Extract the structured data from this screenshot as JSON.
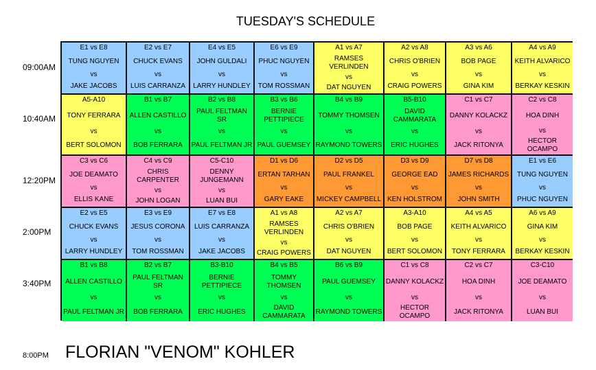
{
  "title": "TUESDAY'S SCHEDULE",
  "colors": {
    "E": "#99ccff",
    "A": "#ffff66",
    "B": "#00ff55",
    "C": "#ff99cc",
    "D": "#ff9933"
  },
  "vs_label": "vs",
  "rows": [
    {
      "time": "09:00AM",
      "matches": [
        {
          "div": "E",
          "label": "E1 vs E8",
          "p1": "TUNG NGUYEN",
          "p2": "JAKE JACOBS"
        },
        {
          "div": "E",
          "label": "E2 vs E7",
          "p1": "CHUCK EVANS",
          "p2": "LUIS CARRANZA"
        },
        {
          "div": "E",
          "label": "E4 vs E5",
          "p1": "JOHN GULDALI",
          "p2": "LARRY HUNDLEY"
        },
        {
          "div": "E",
          "label": "E6 vs E9",
          "p1": "PHUC NGUYEN",
          "p2": "TOM ROSSMAN"
        },
        {
          "div": "A",
          "label": "A1 vs A7",
          "p1": "RAMSES VERLINDEN",
          "p2": "DAT NGUYEN"
        },
        {
          "div": "A",
          "label": "A2 vs A8",
          "p1": "CHRIS O'BRIEN",
          "p2": "CRAIG POWERS"
        },
        {
          "div": "A",
          "label": "A3 vs A6",
          "p1": "BOB PAGE",
          "p2": "GINA KIM"
        },
        {
          "div": "A",
          "label": "A4 vs A9",
          "p1": "KEITH ALVARICO",
          "p2": "BERKAY KESKIN"
        }
      ]
    },
    {
      "time": "10:40AM",
      "matches": [
        {
          "div": "A",
          "label": "A5-A10",
          "p1": "TONY FERRARA",
          "p2": "BERT SOLOMON"
        },
        {
          "div": "B",
          "label": "B1 vs B7",
          "p1": "ALLEN CASTILLO",
          "p2": "BOB FERRARA"
        },
        {
          "div": "B",
          "label": "B2 vs B8",
          "p1": "PAUL FELTMAN SR",
          "p2": "PAUL FELTMAN JR"
        },
        {
          "div": "B",
          "label": "B3 vs B6",
          "p1": "BERNIE PETTIPIECE",
          "p2": "PAUL GUEMSEY"
        },
        {
          "div": "B",
          "label": "B4 vs B9",
          "p1": "TOMMY THOMSEN",
          "p2": "RAYMOND TOWERS"
        },
        {
          "div": "B",
          "label": "B5-B10",
          "p1": "DAVID CAMMARATA",
          "p2": "ERIC HUGHES"
        },
        {
          "div": "C",
          "label": "C1 vs C7",
          "p1": "DANNY KOLACKZ",
          "p2": "JACK RITONYA"
        },
        {
          "div": "C",
          "label": "C2 vs C8",
          "p1": "HOA DINH",
          "p2": "HECTOR OCAMPO"
        }
      ]
    },
    {
      "time": "12:20PM",
      "matches": [
        {
          "div": "C",
          "label": "C3 vs C6",
          "p1": "JOE DEAMATO",
          "p2": "ELLIS KANE"
        },
        {
          "div": "C",
          "label": "C4 vs C9",
          "p1": "CHRIS CARPENTER",
          "p2": "JOHN LOGAN"
        },
        {
          "div": "C",
          "label": "C5-C10",
          "p1": "DENNY JUNGEMANN",
          "p2": "LUAN BUI"
        },
        {
          "div": "D",
          "label": "D1 vs D6",
          "p1": "ERTAN TARHAN",
          "p2": "GARY EAKE"
        },
        {
          "div": "D",
          "label": "D2 vs D5",
          "p1": "PAUL FRANKEL",
          "p2": "MICKEY CAMPBELL"
        },
        {
          "div": "D",
          "label": "D3 vs D9",
          "p1": "GEORGE EAD",
          "p2": "KEN HOLSTROM"
        },
        {
          "div": "D",
          "label": "D7 vs D8",
          "p1": "JAMES RICHARDS",
          "p2": "JOHN SMITH"
        },
        {
          "div": "E",
          "label": "E1 vs E6",
          "p1": "TUNG NGUYEN",
          "p2": "PHUC NGUYEN"
        }
      ]
    },
    {
      "time": "2:00PM",
      "matches": [
        {
          "div": "E",
          "label": "E2 vs E5",
          "p1": "CHUCK EVANS",
          "p2": "LARRY HUNDLEY"
        },
        {
          "div": "E",
          "label": "E3 vs E9",
          "p1": "JESUS CORONA",
          "p2": "TOM ROSSMAN"
        },
        {
          "div": "E",
          "label": "E7 vs E8",
          "p1": "LUIS CARRANZA",
          "p2": "JAKE JACOBS"
        },
        {
          "div": "A",
          "label": "A1 vs A8",
          "p1": "RAMSES VERLINDEN",
          "p2": "CRAIG POWERS"
        },
        {
          "div": "A",
          "label": "A2 vs A7",
          "p1": "CHRIS O'BRIEN",
          "p2": "DAT NGUYEN"
        },
        {
          "div": "A",
          "label": "A3-A10",
          "p1": "BOB PAGE",
          "p2": "BERT SOLOMON"
        },
        {
          "div": "A",
          "label": "A4 vs A5",
          "p1": "KEITH ALVARICO",
          "p2": "TONY FERRARA"
        },
        {
          "div": "A",
          "label": "A6 vs A9",
          "p1": "GINA KIM",
          "p2": "BERKAY KESKIN"
        }
      ]
    },
    {
      "time": "3:40PM",
      "matches": [
        {
          "div": "B",
          "label": "B1 vs B8",
          "p1": "ALLEN CASTILLO",
          "p2": "PAUL FELTMAN JR"
        },
        {
          "div": "B",
          "label": "B2 vs B7",
          "p1": "PAUL FELTMAN SR",
          "p2": "BOB FERRARA"
        },
        {
          "div": "B",
          "label": "B3-B10",
          "p1": "BERNIE PETTIPIECE",
          "p2": "ERIC HUGHES"
        },
        {
          "div": "B",
          "label": "B4 vs B5",
          "p1": "TOMMY THOMSEN",
          "p2": "DAVID CAMMARATA"
        },
        {
          "div": "B",
          "label": "B6 vs B9",
          "p1": "PAUL GUEMSEY",
          "p2": "RAYMOND TOWERS"
        },
        {
          "div": "C",
          "label": "C1 vs C8",
          "p1": "DANNY KOLACKZ",
          "p2": "HECTOR OCAMPO"
        },
        {
          "div": "C",
          "label": "C2 vs C7",
          "p1": "HOA DINH",
          "p2": "JACK RITONYA"
        },
        {
          "div": "C",
          "label": "C3-C10",
          "p1": "JOE DEAMATO",
          "p2": "LUAN BUI"
        }
      ]
    }
  ],
  "main_event": {
    "time": "8:00PM",
    "name": "FLORIAN \"VENOM\" KOHLER"
  }
}
